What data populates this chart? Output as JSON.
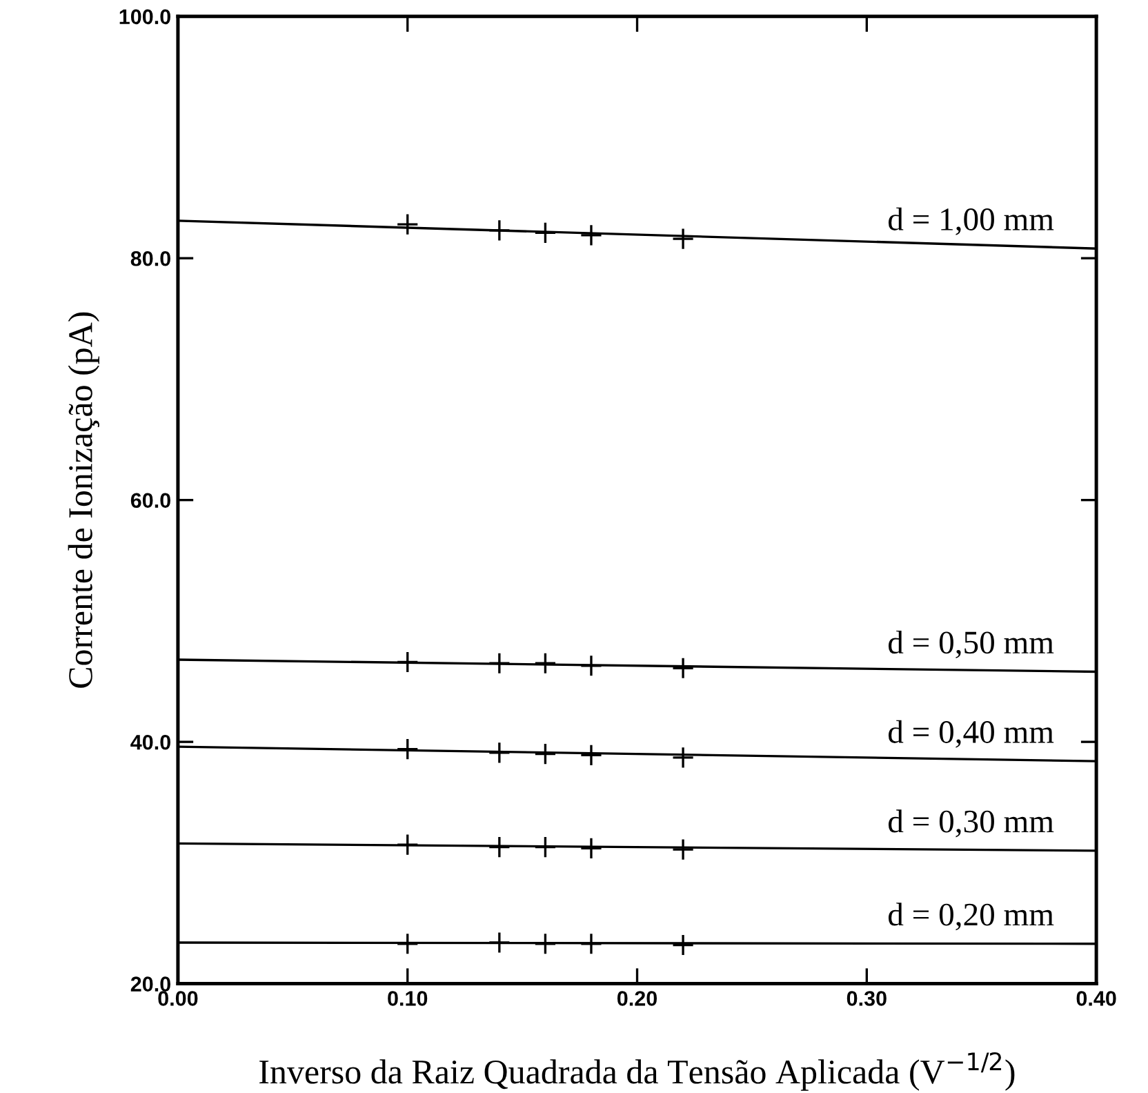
{
  "chart_data": {
    "type": "scatter",
    "xlabel": "Inverso da Raiz Quadrada da Tensão Aplicada (V$^{−1/2}$)",
    "ylabel": "Corrente de Ionização (pA)",
    "xlim": [
      0,
      0.4
    ],
    "ylim": [
      20,
      100
    ],
    "xticks": [
      {
        "value": 0,
        "label": "0.00"
      },
      {
        "value": 0.1,
        "label": "0.10"
      },
      {
        "value": 0.2,
        "label": "0.20"
      },
      {
        "value": 0.3,
        "label": "0.30"
      },
      {
        "value": 0.4,
        "label": "0.40"
      }
    ],
    "yticks": [
      {
        "value": 20,
        "label": "20.0"
      },
      {
        "value": 40,
        "label": "40.0"
      },
      {
        "value": 60,
        "label": "60.0"
      },
      {
        "value": 80,
        "label": "80.0"
      },
      {
        "value": 100,
        "label": "100.0"
      }
    ],
    "grid": false,
    "series": [
      {
        "marker": "cross",
        "color": "#000000",
        "x": [
          0.1,
          0.14,
          0.16,
          0.18,
          0.22
        ],
        "values": [
          82.8,
          82.3,
          82.1,
          81.9,
          81.6
        ]
      },
      {
        "type": "line",
        "marker": "none",
        "name": "d = 1,00 mm",
        "color": "#000000",
        "x": [
          0,
          0.4
        ],
        "values": [
          83.1,
          80.8
        ]
      },
      {
        "marker": "cross",
        "color": "#000000",
        "x": [
          0.1,
          0.14,
          0.16,
          0.18,
          0.22
        ],
        "values": [
          46.6,
          46.5,
          46.5,
          46.3,
          46.1
        ]
      },
      {
        "type": "line",
        "marker": "none",
        "name": "d = 0,50 mm",
        "color": "#000000",
        "x": [
          0,
          0.4
        ],
        "values": [
          46.8,
          45.8
        ]
      },
      {
        "marker": "cross",
        "color": "#000000",
        "x": [
          0.1,
          0.14,
          0.16,
          0.18,
          0.22
        ],
        "values": [
          39.4,
          39.1,
          39.0,
          38.9,
          38.7
        ]
      },
      {
        "type": "line",
        "marker": "none",
        "name": "d = 0,40 mm",
        "color": "#000000",
        "x": [
          0,
          0.4
        ],
        "values": [
          39.6,
          38.4
        ]
      },
      {
        "marker": "cross",
        "color": "#000000",
        "x": [
          0.1,
          0.14,
          0.16,
          0.18,
          0.22
        ],
        "values": [
          31.5,
          31.3,
          31.3,
          31.2,
          31.1
        ]
      },
      {
        "type": "line",
        "marker": "none",
        "name": "d = 0,30 mm",
        "color": "#000000",
        "x": [
          0,
          0.4
        ],
        "values": [
          31.6,
          31.0
        ]
      },
      {
        "marker": "cross",
        "color": "#000000",
        "x": [
          0.1,
          0.14,
          0.16,
          0.18,
          0.22
        ],
        "values": [
          23.3,
          23.4,
          23.3,
          23.3,
          23.2
        ]
      },
      {
        "type": "line",
        "marker": "none",
        "name": "d = 0,20 mm",
        "color": "#000000",
        "x": [
          0,
          0.4
        ],
        "values": [
          23.4,
          23.3
        ]
      }
    ]
  }
}
